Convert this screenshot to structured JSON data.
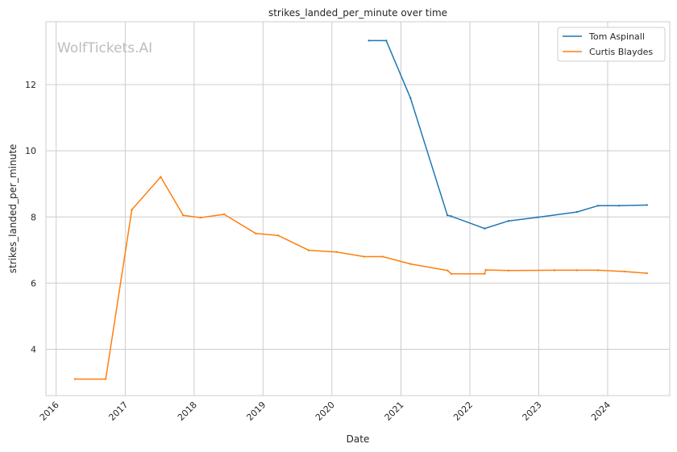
{
  "watermark": "WolfTickets.AI",
  "chart_data": {
    "type": "line",
    "title": "strikes_landed_per_minute over time",
    "xlabel": "Date",
    "ylabel": "strikes_landed_per_minute",
    "xlim": [
      "2015-11-08",
      "2024-11-25"
    ],
    "ylim": [
      2.6,
      13.9
    ],
    "x_ticks": [
      "2016",
      "2017",
      "2018",
      "2019",
      "2020",
      "2021",
      "2022",
      "2023",
      "2024"
    ],
    "y_ticks": [
      4,
      6,
      8,
      10,
      12
    ],
    "grid": true,
    "legend_position": "top-right",
    "series": [
      {
        "name": "Tom Aspinall",
        "color": "#1f77b4",
        "points": [
          [
            "2020-07-15",
            13.33
          ],
          [
            "2020-10-15",
            13.33
          ],
          [
            "2021-02-20",
            11.6
          ],
          [
            "2021-09-04",
            8.05
          ],
          [
            "2021-09-25",
            8.02
          ],
          [
            "2022-03-20",
            7.65
          ],
          [
            "2022-07-25",
            7.88
          ],
          [
            "2022-12-25",
            7.99
          ],
          [
            "2023-07-22",
            8.15
          ],
          [
            "2023-11-11",
            8.34
          ],
          [
            "2024-03-01",
            8.34
          ],
          [
            "2024-07-27",
            8.36
          ]
        ]
      },
      {
        "name": "Curtis Blaydes",
        "color": "#ff7f0e",
        "points": [
          [
            "2016-04-10",
            3.1
          ],
          [
            "2016-09-20",
            3.1
          ],
          [
            "2017-02-05",
            8.22
          ],
          [
            "2017-07-08",
            9.21
          ],
          [
            "2017-11-04",
            8.05
          ],
          [
            "2018-02-04",
            7.98
          ],
          [
            "2018-06-09",
            8.08
          ],
          [
            "2018-11-24",
            7.5
          ],
          [
            "2019-03-23",
            7.44
          ],
          [
            "2019-09-01",
            6.99
          ],
          [
            "2020-01-25",
            6.94
          ],
          [
            "2020-06-20",
            6.8
          ],
          [
            "2020-09-26",
            6.8
          ],
          [
            "2021-02-20",
            6.58
          ],
          [
            "2021-09-05",
            6.38
          ],
          [
            "2021-09-25",
            6.28
          ],
          [
            "2022-03-20",
            6.28
          ],
          [
            "2022-03-26",
            6.4
          ],
          [
            "2022-07-24",
            6.38
          ],
          [
            "2023-03-25",
            6.39
          ],
          [
            "2023-07-22",
            6.39
          ],
          [
            "2023-11-11",
            6.39
          ],
          [
            "2024-03-30",
            6.35
          ],
          [
            "2024-07-27",
            6.3
          ]
        ]
      }
    ]
  }
}
